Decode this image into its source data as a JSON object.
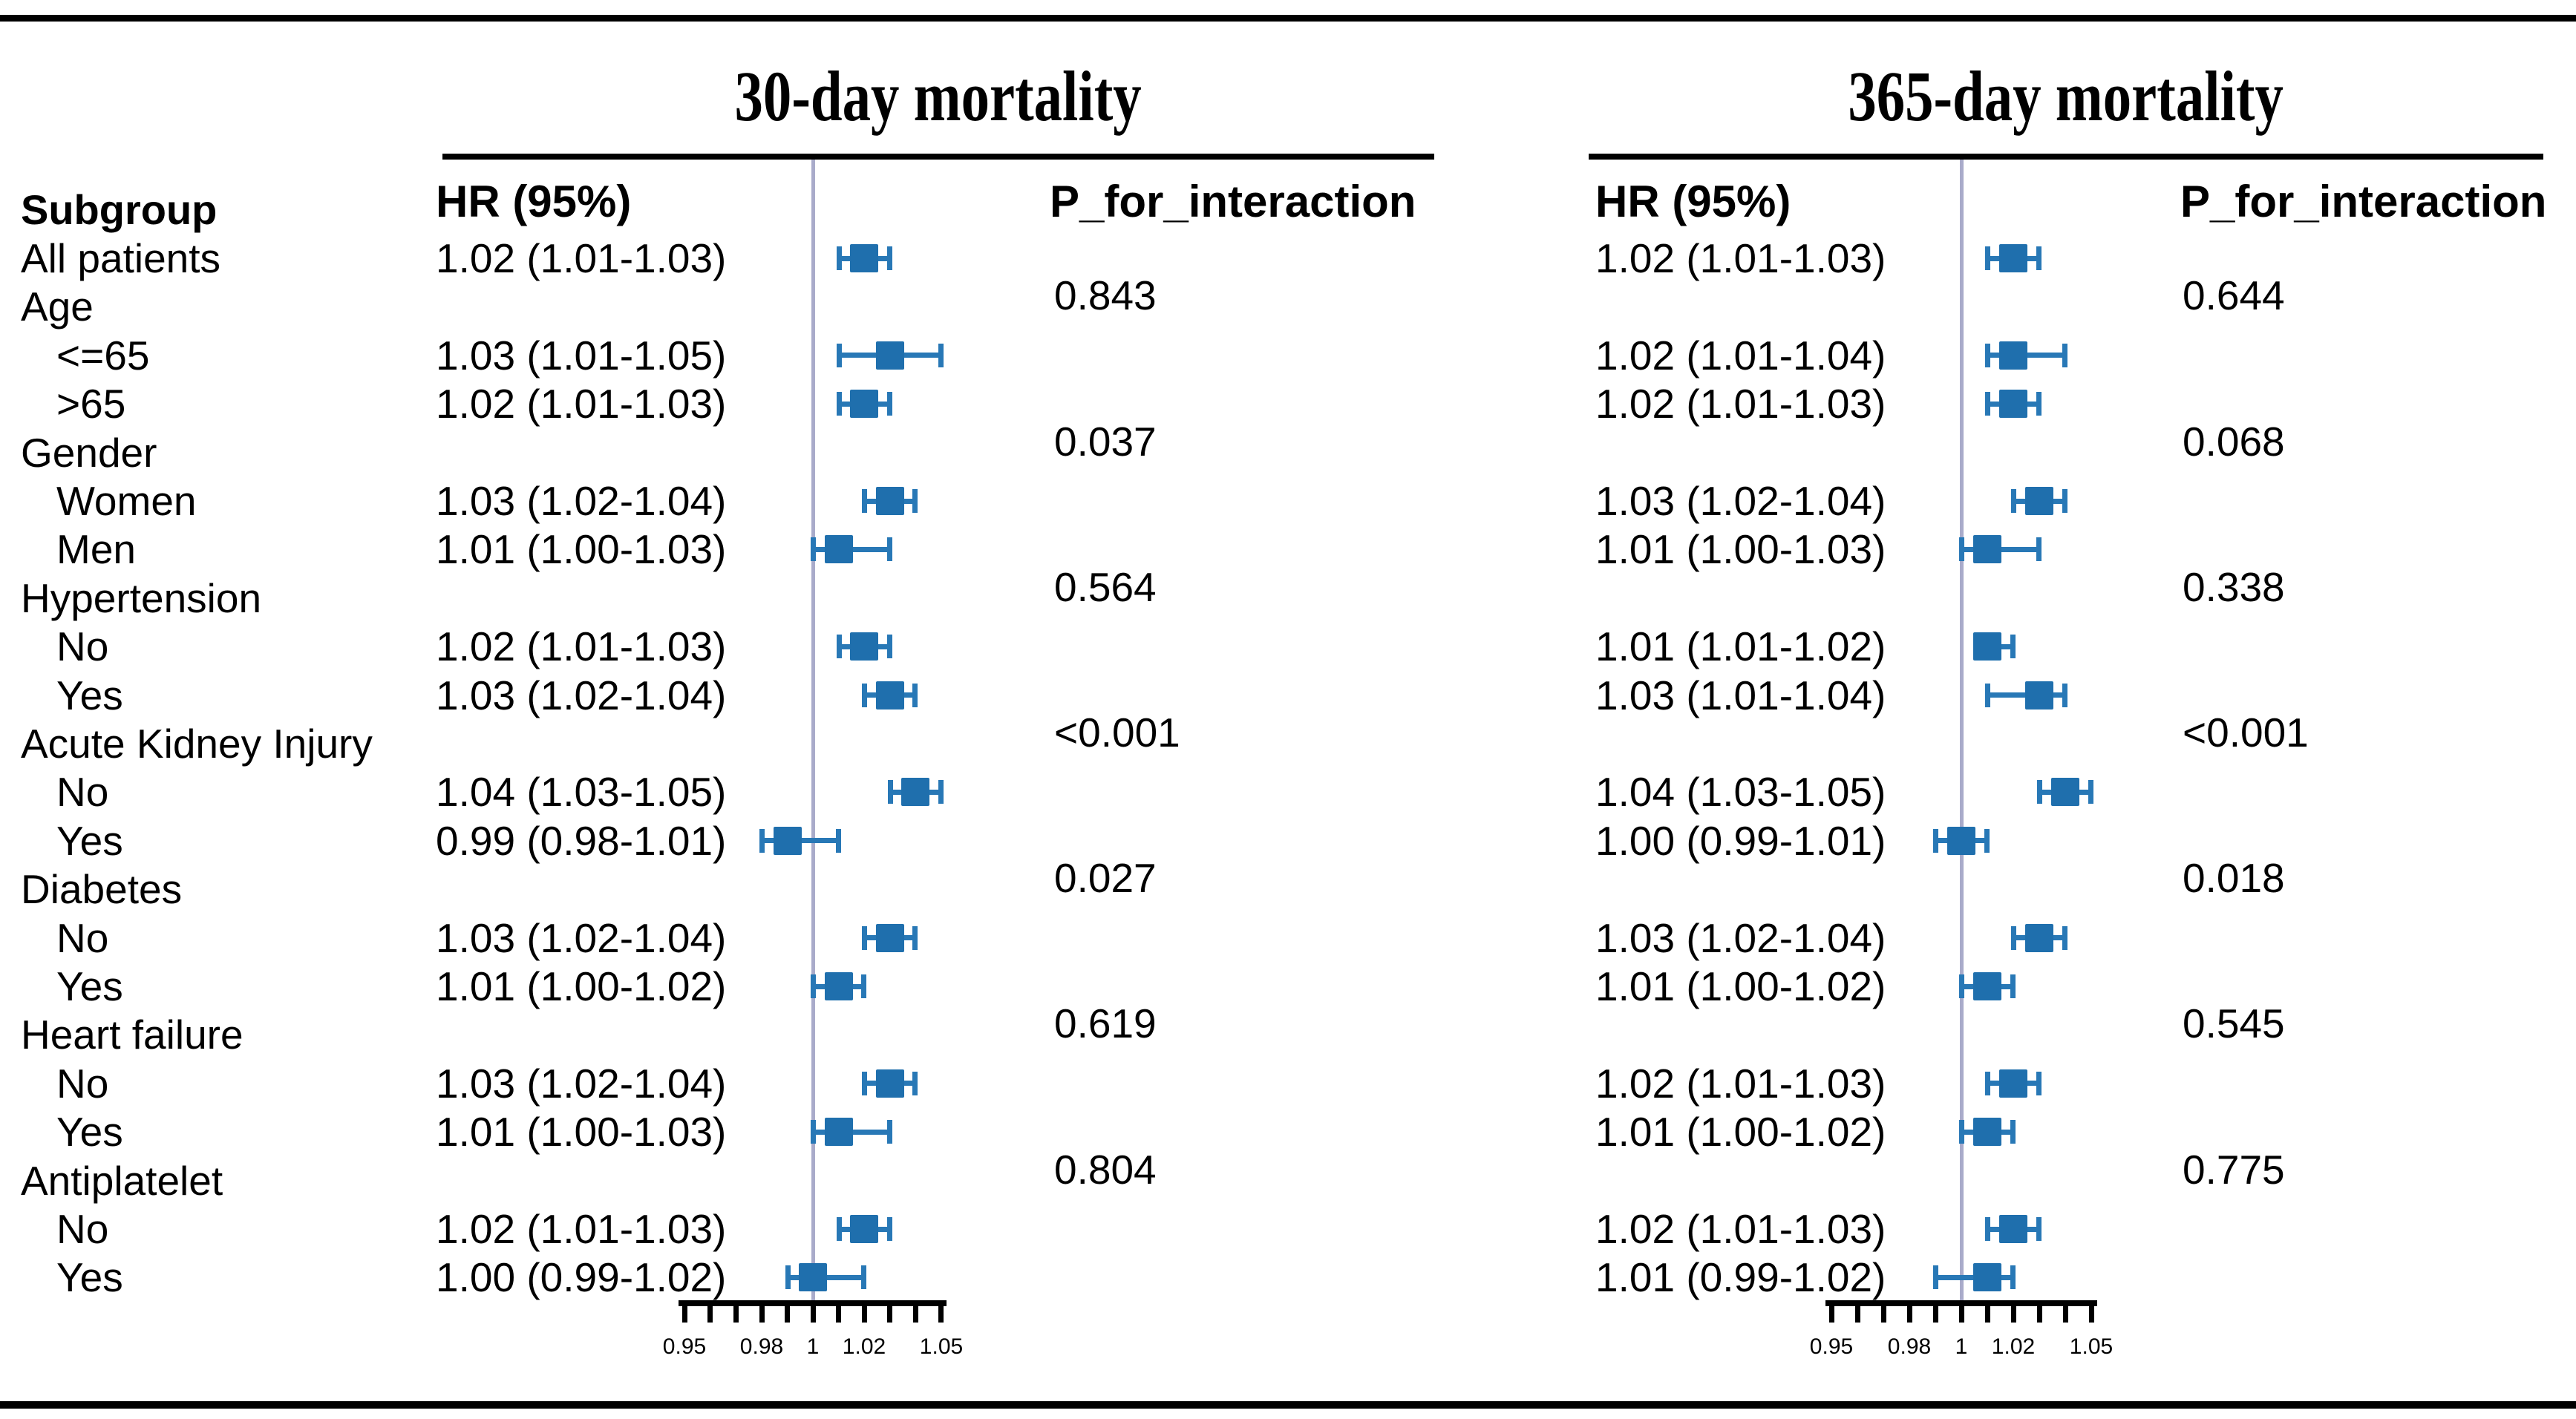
{
  "figure": {
    "subgroup_header": "Subgroup",
    "panels": [
      {
        "title": "30-day mortality",
        "hr_header": "HR (95%)",
        "p_header": "P_for_interaction"
      },
      {
        "title": "365-day mortality",
        "hr_header": "HR (95%)",
        "p_header": "P_for_interaction"
      }
    ]
  },
  "chart_data": {
    "type": "forest",
    "ref_line": 1.0,
    "axis": {
      "min": 0.95,
      "max": 1.05,
      "tick_step": 0.01,
      "labeled_ticks": [
        {
          "value": 0.95,
          "label": "0.95"
        },
        {
          "value": 0.98,
          "label": "0.98"
        },
        {
          "value": 1.0,
          "label": "1"
        },
        {
          "value": 1.02,
          "label": "1.02"
        },
        {
          "value": 1.05,
          "label": "1.05"
        }
      ]
    },
    "rows": [
      {
        "label": "All patients",
        "indent": false,
        "p30": null,
        "p365": null,
        "s30": {
          "text": "1.02 (1.01-1.03)",
          "est": 1.02,
          "lo": 1.01,
          "hi": 1.03
        },
        "s365": {
          "text": "1.02 (1.01-1.03)",
          "est": 1.02,
          "lo": 1.01,
          "hi": 1.03
        }
      },
      {
        "label": "Age",
        "indent": false,
        "s30": null,
        "s365": null,
        "p30": "0.843",
        "p365": "0.644"
      },
      {
        "label": "<=65",
        "indent": true,
        "p30": null,
        "p365": null,
        "s30": {
          "text": "1.03 (1.01-1.05)",
          "est": 1.03,
          "lo": 1.01,
          "hi": 1.05
        },
        "s365": {
          "text": "1.02 (1.01-1.04)",
          "est": 1.02,
          "lo": 1.01,
          "hi": 1.04
        }
      },
      {
        "label": ">65",
        "indent": true,
        "p30": null,
        "p365": null,
        "s30": {
          "text": "1.02 (1.01-1.03)",
          "est": 1.02,
          "lo": 1.01,
          "hi": 1.03
        },
        "s365": {
          "text": "1.02 (1.01-1.03)",
          "est": 1.02,
          "lo": 1.01,
          "hi": 1.03
        }
      },
      {
        "label": "Gender",
        "indent": false,
        "s30": null,
        "s365": null,
        "p30": "0.037",
        "p365": "0.068"
      },
      {
        "label": "Women",
        "indent": true,
        "p30": null,
        "p365": null,
        "s30": {
          "text": "1.03 (1.02-1.04)",
          "est": 1.03,
          "lo": 1.02,
          "hi": 1.04
        },
        "s365": {
          "text": "1.03 (1.02-1.04)",
          "est": 1.03,
          "lo": 1.02,
          "hi": 1.04
        }
      },
      {
        "label": "Men",
        "indent": true,
        "p30": null,
        "p365": null,
        "s30": {
          "text": "1.01 (1.00-1.03)",
          "est": 1.01,
          "lo": 1.0,
          "hi": 1.03
        },
        "s365": {
          "text": "1.01 (1.00-1.03)",
          "est": 1.01,
          "lo": 1.0,
          "hi": 1.03
        }
      },
      {
        "label": "Hypertension",
        "indent": false,
        "s30": null,
        "s365": null,
        "p30": "0.564",
        "p365": "0.338"
      },
      {
        "label": "No",
        "indent": true,
        "p30": null,
        "p365": null,
        "s30": {
          "text": "1.02 (1.01-1.03)",
          "est": 1.02,
          "lo": 1.01,
          "hi": 1.03
        },
        "s365": {
          "text": "1.01 (1.01-1.02)",
          "est": 1.01,
          "lo": 1.01,
          "hi": 1.02
        }
      },
      {
        "label": "Yes",
        "indent": true,
        "p30": null,
        "p365": null,
        "s30": {
          "text": "1.03 (1.02-1.04)",
          "est": 1.03,
          "lo": 1.02,
          "hi": 1.04
        },
        "s365": {
          "text": "1.03 (1.01-1.04)",
          "est": 1.03,
          "lo": 1.01,
          "hi": 1.04
        }
      },
      {
        "label": "Acute Kidney Injury",
        "indent": false,
        "s30": null,
        "s365": null,
        "p30": "<0.001",
        "p365": "<0.001"
      },
      {
        "label": "No",
        "indent": true,
        "p30": null,
        "p365": null,
        "s30": {
          "text": "1.04 (1.03-1.05)",
          "est": 1.04,
          "lo": 1.03,
          "hi": 1.05
        },
        "s365": {
          "text": "1.04 (1.03-1.05)",
          "est": 1.04,
          "lo": 1.03,
          "hi": 1.05
        }
      },
      {
        "label": "Yes",
        "indent": true,
        "p30": null,
        "p365": null,
        "s30": {
          "text": "0.99 (0.98-1.01)",
          "est": 0.99,
          "lo": 0.98,
          "hi": 1.01
        },
        "s365": {
          "text": "1.00 (0.99-1.01)",
          "est": 1.0,
          "lo": 0.99,
          "hi": 1.01
        }
      },
      {
        "label": "Diabetes",
        "indent": false,
        "s30": null,
        "s365": null,
        "p30": "0.027",
        "p365": "0.018"
      },
      {
        "label": "No",
        "indent": true,
        "p30": null,
        "p365": null,
        "s30": {
          "text": "1.03 (1.02-1.04)",
          "est": 1.03,
          "lo": 1.02,
          "hi": 1.04
        },
        "s365": {
          "text": "1.03 (1.02-1.04)",
          "est": 1.03,
          "lo": 1.02,
          "hi": 1.04
        }
      },
      {
        "label": "Yes",
        "indent": true,
        "p30": null,
        "p365": null,
        "s30": {
          "text": "1.01 (1.00-1.02)",
          "est": 1.01,
          "lo": 1.0,
          "hi": 1.02
        },
        "s365": {
          "text": "1.01 (1.00-1.02)",
          "est": 1.01,
          "lo": 1.0,
          "hi": 1.02
        }
      },
      {
        "label": "Heart failure",
        "indent": false,
        "s30": null,
        "s365": null,
        "p30": "0.619",
        "p365": "0.545"
      },
      {
        "label": "No",
        "indent": true,
        "p30": null,
        "p365": null,
        "s30": {
          "text": "1.03 (1.02-1.04)",
          "est": 1.03,
          "lo": 1.02,
          "hi": 1.04
        },
        "s365": {
          "text": "1.02 (1.01-1.03)",
          "est": 1.02,
          "lo": 1.01,
          "hi": 1.03
        }
      },
      {
        "label": "Yes",
        "indent": true,
        "p30": null,
        "p365": null,
        "s30": {
          "text": "1.01 (1.00-1.03)",
          "est": 1.01,
          "lo": 1.0,
          "hi": 1.03
        },
        "s365": {
          "text": "1.01 (1.00-1.02)",
          "est": 1.01,
          "lo": 1.0,
          "hi": 1.02
        }
      },
      {
        "label": "Antiplatelet",
        "indent": false,
        "s30": null,
        "s365": null,
        "p30": "0.804",
        "p365": "0.775"
      },
      {
        "label": "No",
        "indent": true,
        "p30": null,
        "p365": null,
        "s30": {
          "text": "1.02 (1.01-1.03)",
          "est": 1.02,
          "lo": 1.01,
          "hi": 1.03
        },
        "s365": {
          "text": "1.02 (1.01-1.03)",
          "est": 1.02,
          "lo": 1.01,
          "hi": 1.03
        }
      },
      {
        "label": "Yes",
        "indent": true,
        "p30": null,
        "p365": null,
        "s30": {
          "text": "1.00 (0.99-1.02)",
          "est": 1.0,
          "lo": 0.99,
          "hi": 1.02
        },
        "s365": {
          "text": "1.01 (0.99-1.02)",
          "est": 1.01,
          "lo": 0.99,
          "hi": 1.02
        }
      }
    ]
  },
  "colors": {
    "marker": "#1f6fad",
    "whisker": "#2878b6",
    "ref_line": "#a9abca",
    "border": "#000000",
    "text": "#000000"
  }
}
